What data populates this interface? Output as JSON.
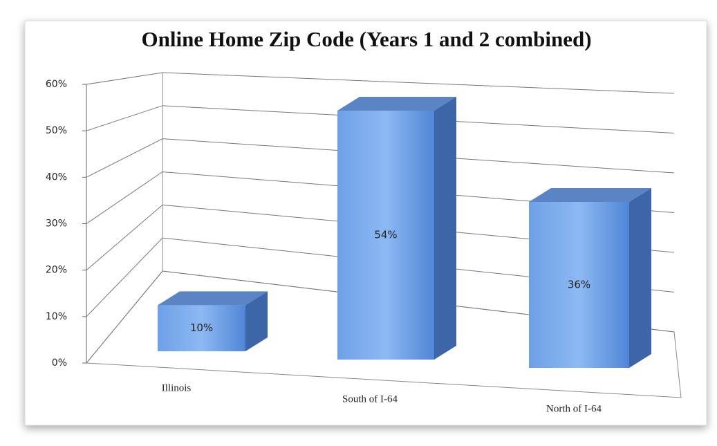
{
  "chart_data": {
    "type": "bar3d",
    "title": "Online Home Zip Code (Years 1 and 2 combined)",
    "categories": [
      "Illinois",
      "South of I-64",
      "North of I-64"
    ],
    "values": [
      10,
      54,
      36
    ],
    "value_labels": [
      "10%",
      "54%",
      "36%"
    ],
    "color": "#5a8fd8",
    "ylim": [
      0,
      60
    ],
    "yticks": [
      {
        "value": 0,
        "label": "0%"
      },
      {
        "value": 10,
        "label": "10%"
      },
      {
        "value": 20,
        "label": "20%"
      },
      {
        "value": 30,
        "label": "30%"
      },
      {
        "value": 40,
        "label": "40%"
      },
      {
        "value": 50,
        "label": "50%"
      },
      {
        "value": 60,
        "label": "60%"
      }
    ],
    "grid": true
  }
}
